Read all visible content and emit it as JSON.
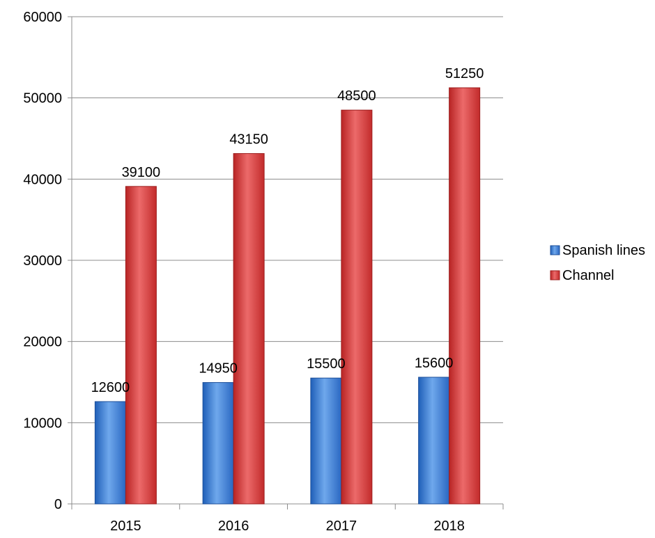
{
  "chart_data": {
    "type": "bar",
    "title": "",
    "xlabel": "",
    "ylabel": "",
    "categories": [
      "2015",
      "2016",
      "2017",
      "2018"
    ],
    "series": [
      {
        "name": "Spanish lines",
        "values": [
          12600,
          14950,
          15500,
          15600
        ],
        "color": "#3a7fd6"
      },
      {
        "name": "Channel",
        "values": [
          39100,
          43150,
          48500,
          51250
        ],
        "color": "#d43a3a"
      }
    ],
    "ylim": [
      0,
      60000
    ],
    "yticks": [
      "0",
      "10000",
      "20000",
      "30000",
      "40000",
      "50000",
      "60000"
    ],
    "grid": true,
    "legend_position": "right",
    "data_labels": true
  }
}
